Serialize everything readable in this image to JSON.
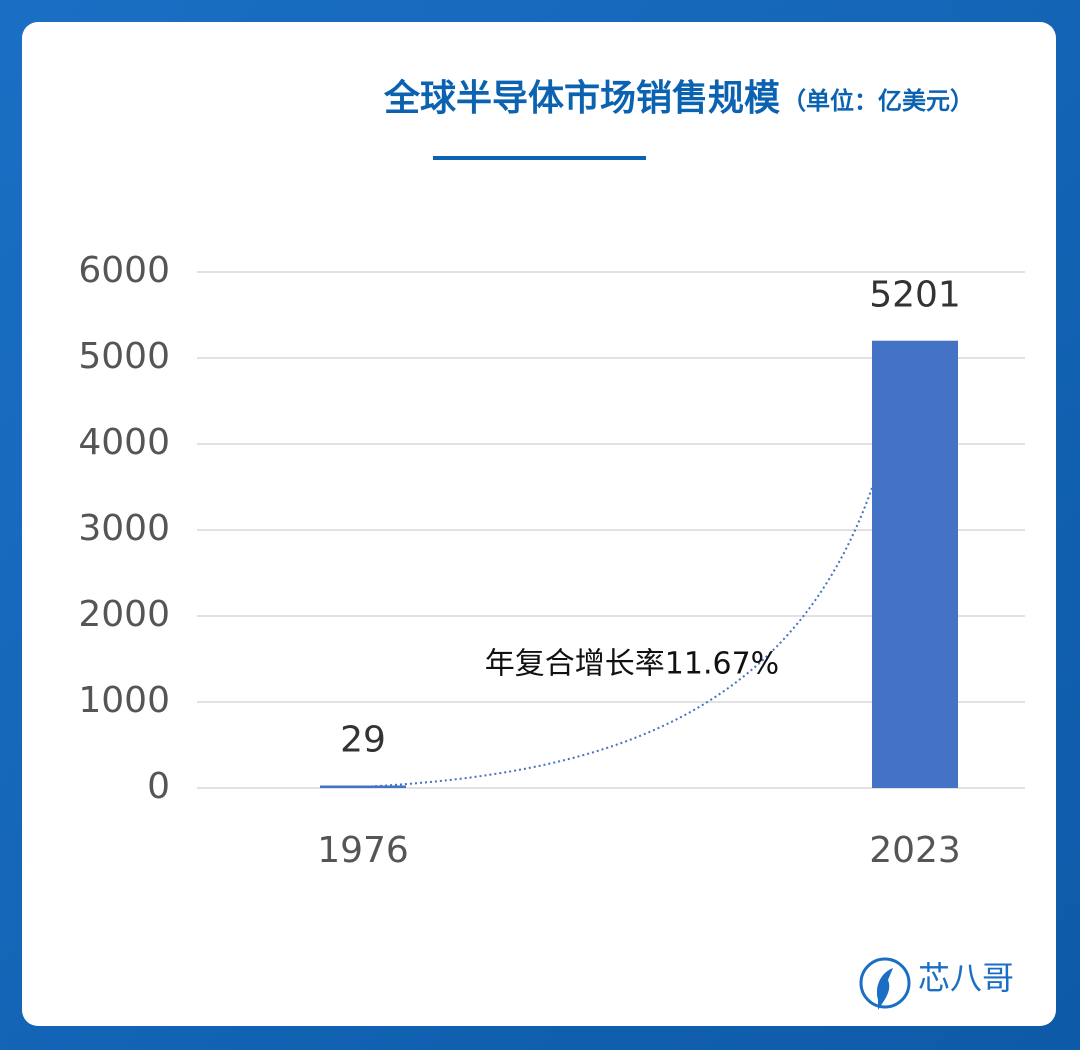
{
  "chart_data": {
    "type": "bar",
    "title": "全球半导体市场销售规模",
    "subtitle": "（单位：亿美元）",
    "categories": [
      "1976",
      "2023"
    ],
    "values": [
      29,
      5201
    ],
    "color": "#4472c4",
    "ylim": [
      0,
      6000
    ],
    "yticks": [
      0,
      1000,
      2000,
      3000,
      4000,
      5000,
      6000
    ],
    "grid": true,
    "annotation": "年复合增长率11.67%",
    "brand": "芯八哥"
  }
}
